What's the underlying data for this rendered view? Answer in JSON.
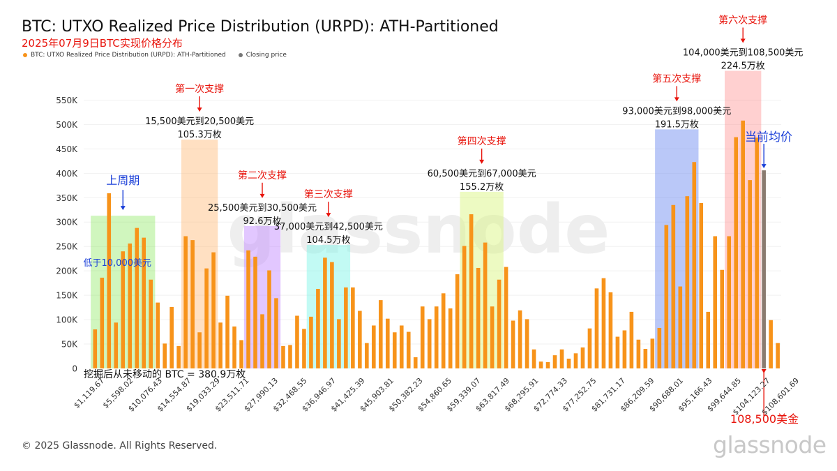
{
  "title": "BTC: UTXO Realized Price Distribution (URPD): ATH-Partitioned",
  "subtitle": "2025年07月9日BTC实现价格分布",
  "legend": [
    {
      "label": "BTC: UTXO Realized Price Distribution (URPD): ATH-Partitioned",
      "color": "#f7931a"
    },
    {
      "label": "Closing price",
      "color": "#777777"
    }
  ],
  "footer": "© 2025 Glassnode. All Rights Reserved.",
  "watermark": "glassnode",
  "chart_watermark": "glassnode",
  "colors": {
    "bar": "#f7931a",
    "closing": "#8a7b70"
  },
  "chart_data": {
    "type": "bar",
    "ylim": [
      0,
      550000
    ],
    "y_ticks": [
      "0",
      "50K",
      "100K",
      "150K",
      "200K",
      "250K",
      "300K",
      "350K",
      "400K",
      "450K",
      "500K",
      "550K"
    ],
    "x_ticks": [
      "$1,119.67",
      "$5,598.02",
      "$10,076.43",
      "$14,554.87",
      "$19,033.29",
      "$23,511.71",
      "$27,990.13",
      "$32,468.55",
      "$36,946.97",
      "$41,425.39",
      "$45,903.81",
      "$50,382.23",
      "$54,860.65",
      "$59,339.07",
      "$63,817.49",
      "$68,295.91",
      "$72,774.33",
      "$77,252.75",
      "$81,731.17",
      "$86,209.59",
      "$90,688.01",
      "$95,166.43",
      "$99,644.85",
      "$104,123.27",
      "$108,601.69"
    ],
    "values": [
      80000,
      186000,
      359000,
      94000,
      240000,
      256000,
      288000,
      268000,
      182000,
      135000,
      51000,
      126000,
      46000,
      271000,
      263000,
      74000,
      205000,
      238000,
      94000,
      149000,
      86000,
      58000,
      242000,
      229000,
      111000,
      201000,
      144000,
      46000,
      48000,
      108000,
      81000,
      106000,
      163000,
      227000,
      218000,
      101000,
      166000,
      166000,
      118000,
      52000,
      88000,
      140000,
      102000,
      74000,
      88000,
      75000,
      23000,
      127000,
      101000,
      127000,
      154000,
      123000,
      193000,
      251000,
      316000,
      206000,
      258000,
      127000,
      182000,
      208000,
      98000,
      119000,
      101000,
      39000,
      14000,
      13000,
      27000,
      39000,
      20000,
      31000,
      43000,
      82000,
      164000,
      185000,
      156000,
      65000,
      78000,
      116000,
      59000,
      40000,
      61000,
      83000,
      294000,
      335000,
      168000,
      353000,
      423000,
      339000,
      116000,
      271000,
      202000,
      271000,
      474000,
      508000,
      386000,
      473000,
      406000,
      99000,
      52000
    ],
    "closing_price_index": 96,
    "total_note": "挖掘后从未移动的 BTC = 380.9万枚",
    "zones": [
      {
        "from": 0,
        "to": 8,
        "color": "rgba(120,230,70,0.35)",
        "top": 313000,
        "header": "上周期",
        "header_color": "#1a3fd8",
        "arrow_color": "#1a3fd8",
        "inner_label": "低于10,000美元",
        "inner_color": "#1a3fd8"
      },
      {
        "from": 13,
        "to": 17,
        "color": "rgba(255,180,110,0.42)",
        "top": 469000,
        "header": "第一次支撑",
        "header_color": "#e8140c",
        "arrow_color": "#e8140c",
        "range": "15,500美元到20,500美元",
        "amount": "105.3万枚"
      },
      {
        "from": 22,
        "to": 26,
        "color": "rgba(190,130,255,0.45)",
        "top": 292000,
        "header": "第二次支撑",
        "header_color": "#e8140c",
        "arrow_color": "#e8140c",
        "range": "25,500美元到30,500美元",
        "amount": "92.6万枚"
      },
      {
        "from": 31,
        "to": 36,
        "color": "rgba(120,245,230,0.45)",
        "top": 253000,
        "header": "第三次支撑",
        "header_color": "#e8140c",
        "arrow_color": "#e8140c",
        "range": "37,000美元到42,500美元",
        "amount": "104.5万枚"
      },
      {
        "from": 53,
        "to": 58,
        "color": "rgba(215,245,120,0.45)",
        "top": 362000,
        "header": "第四次支撑",
        "header_color": "#e8140c",
        "arrow_color": "#e8140c",
        "range": "60,500美元到67,000美元",
        "amount": "155.2万枚"
      },
      {
        "from": 81,
        "to": 86,
        "color": "rgba(110,140,240,0.48)",
        "top": 490000,
        "header": "第五次支撑",
        "header_color": "#e8140c",
        "arrow_color": "#e8140c",
        "range": "93,000美元到98,000美元",
        "amount": "191.5万枚"
      },
      {
        "from": 91,
        "to": 95,
        "color": "rgba(255,120,120,0.35)",
        "top": 610000,
        "header": "第六次支撑",
        "header_color": "#e8140c",
        "arrow_color": "#e8140c",
        "range": "104,000美元到108,500美元",
        "amount": "224.5万枚"
      }
    ],
    "current_price": {
      "label": "当前均价",
      "label_color": "#1a3fd8",
      "price_label": "108,500美金",
      "price_color": "#e8140c"
    }
  }
}
